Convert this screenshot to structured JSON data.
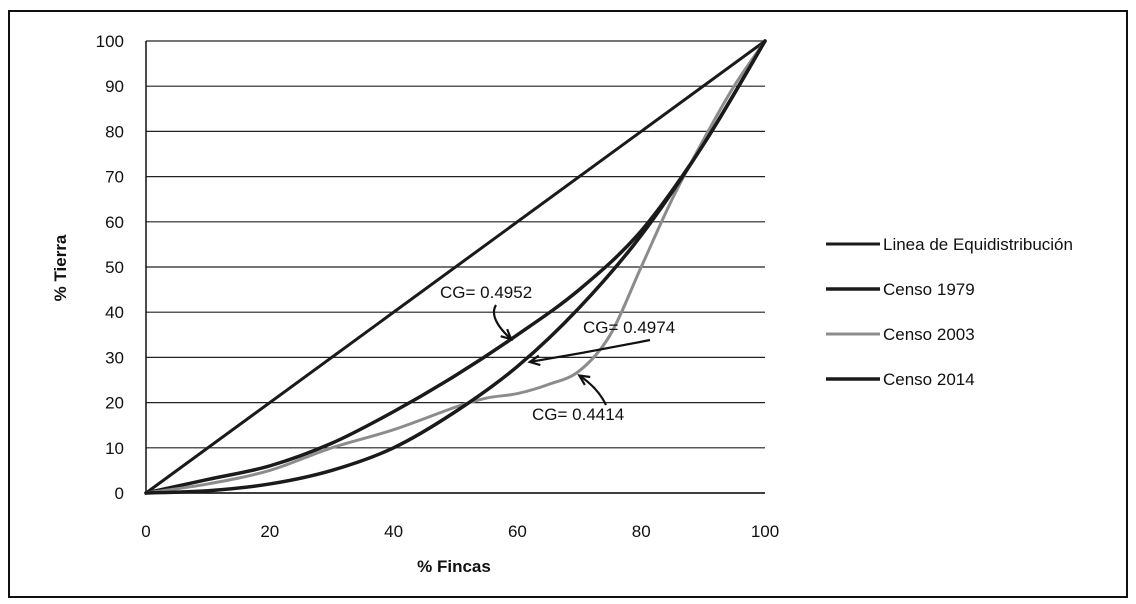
{
  "chart_data": {
    "type": "line",
    "xlabel": "% Fincas",
    "ylabel": "% Tierra",
    "xlim": [
      0,
      100
    ],
    "ylim": [
      0,
      100
    ],
    "x_ticks": [
      "0",
      "20",
      "40",
      "60",
      "80",
      "100"
    ],
    "y_ticks": [
      "0",
      "10",
      "20",
      "30",
      "40",
      "50",
      "60",
      "70",
      "80",
      "90",
      "100"
    ],
    "grid": "horizontal",
    "legend_position": "right",
    "series": [
      {
        "name": "Linea de Equidistribución",
        "color": "#1a1a1a",
        "x": [
          0,
          100
        ],
        "y": [
          0,
          100
        ]
      },
      {
        "name": "Censo 1979",
        "color": "#1a1a1a",
        "x": [
          0,
          10,
          20,
          30,
          40,
          50,
          60,
          70,
          80,
          90,
          100
        ],
        "y": [
          0,
          3,
          6,
          11,
          18,
          26,
          35,
          45,
          58,
          77,
          100
        ]
      },
      {
        "name": "Censo 2003",
        "color": "#8c8c8c",
        "x": [
          0,
          10,
          20,
          30,
          40,
          50,
          55,
          60,
          65,
          70,
          75,
          80,
          85,
          90,
          95,
          100
        ],
        "y": [
          0,
          2,
          5,
          10,
          14,
          19,
          21,
          22,
          24,
          27,
          35,
          50,
          65,
          78,
          90,
          100
        ]
      },
      {
        "name": "Censo 2014",
        "color": "#1a1a1a",
        "x": [
          0,
          10,
          20,
          30,
          40,
          50,
          60,
          70,
          80,
          90,
          100
        ],
        "y": [
          0,
          0.5,
          2,
          5,
          10,
          18,
          28,
          41,
          57,
          77,
          100
        ]
      }
    ],
    "annotations": [
      {
        "text": "CG= 0.4952",
        "target": [
          59,
          34
        ]
      },
      {
        "text": "CG= 0.4974",
        "target": [
          62,
          29
        ]
      },
      {
        "text": "CG= 0.4414",
        "target": [
          70,
          26
        ]
      }
    ]
  }
}
